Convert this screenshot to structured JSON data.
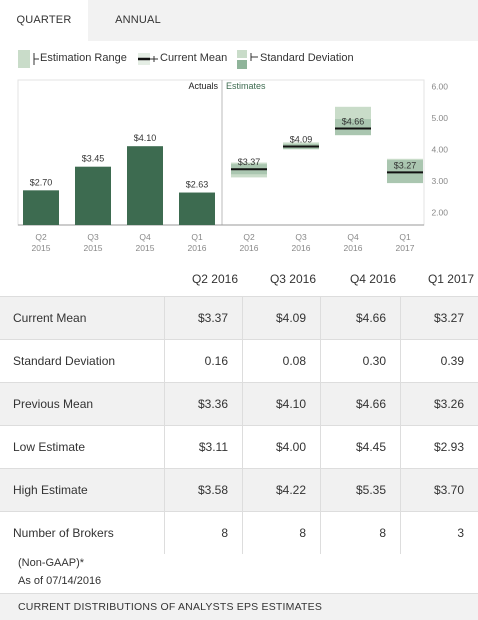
{
  "tabs": [
    {
      "label": "QUARTER",
      "active": true
    },
    {
      "label": "ANNUAL",
      "active": false
    }
  ],
  "legend": {
    "estimation_range": "Estimation Range",
    "current_mean": "Current Mean",
    "standard_deviation": "Standard Deviation"
  },
  "colors": {
    "actual_bar": "#3d6b50",
    "range_fill": "#c9dcc9",
    "std_fill": "#8fb49a",
    "mean_line": "#111111"
  },
  "chart_data": {
    "type": "bar",
    "section_labels": {
      "actuals": "Actuals",
      "estimates": "Estimates"
    },
    "y_ticks": [
      "6.00",
      "5.00",
      "4.00",
      "3.00",
      "2.00"
    ],
    "ylim": [
      1.6,
      6.2
    ],
    "actuals": [
      {
        "q": "Q2",
        "year": "2015",
        "value": 2.7,
        "label": "$2.70"
      },
      {
        "q": "Q3",
        "year": "2015",
        "value": 3.45,
        "label": "$3.45"
      },
      {
        "q": "Q4",
        "year": "2015",
        "value": 4.1,
        "label": "$4.10"
      },
      {
        "q": "Q1",
        "year": "2016",
        "value": 2.63,
        "label": "$2.63"
      }
    ],
    "estimates": [
      {
        "q": "Q2",
        "year": "2016",
        "mean": 3.37,
        "std": 0.16,
        "low": 3.11,
        "high": 3.58,
        "label": "$3.37"
      },
      {
        "q": "Q3",
        "year": "2016",
        "mean": 4.09,
        "std": 0.08,
        "low": 4.0,
        "high": 4.22,
        "label": "$4.09"
      },
      {
        "q": "Q4",
        "year": "2016",
        "mean": 4.66,
        "std": 0.3,
        "low": 4.45,
        "high": 5.35,
        "label": "$4.66"
      },
      {
        "q": "Q1",
        "year": "2017",
        "mean": 3.27,
        "std": 0.39,
        "low": 2.93,
        "high": 3.7,
        "label": "$3.27"
      }
    ]
  },
  "table": {
    "columns": [
      "Q2 2016",
      "Q3 2016",
      "Q4 2016",
      "Q1 2017"
    ],
    "rows": [
      {
        "label": "Current Mean",
        "values": [
          "$3.37",
          "$4.09",
          "$4.66",
          "$3.27"
        ]
      },
      {
        "label": "Standard Deviation",
        "values": [
          "0.16",
          "0.08",
          "0.30",
          "0.39"
        ]
      },
      {
        "label": "Previous Mean",
        "values": [
          "$3.36",
          "$4.10",
          "$4.66",
          "$3.26"
        ]
      },
      {
        "label": "Low Estimate",
        "values": [
          "$3.11",
          "$4.00",
          "$4.45",
          "$2.93"
        ]
      },
      {
        "label": "High Estimate",
        "values": [
          "$3.58",
          "$4.22",
          "$5.35",
          "$3.70"
        ]
      },
      {
        "label": "Number of Brokers",
        "values": [
          "8",
          "8",
          "8",
          "3"
        ]
      }
    ]
  },
  "footnotes": {
    "gaap": "(Non-GAAP)*",
    "as_of": "As of 07/14/2016"
  },
  "bottom_section": "CURRENT DISTRIBUTIONS OF ANALYSTS EPS ESTIMATES"
}
